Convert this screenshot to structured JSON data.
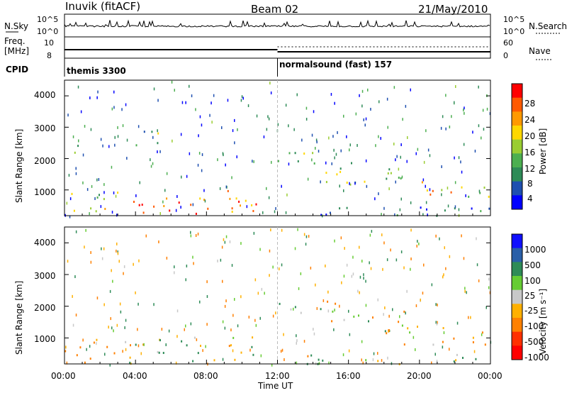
{
  "header": {
    "station": "Inuvik (fitACF)",
    "beam": "Beam 02",
    "date": "21/May/2010"
  },
  "panels": {
    "nsky": {
      "label": "N.Sky",
      "right_label": "N.Search",
      "ticks_left": [
        "10^5",
        "10^0"
      ],
      "ticks_right": [
        "10^5",
        "10^0"
      ]
    },
    "freq": {
      "label_line1": "Freq.",
      "label_line2": "[MHz]",
      "right_label": "Nave",
      "ticks_left": [
        "10",
        "8"
      ],
      "ticks_right": [
        "60",
        "0"
      ]
    },
    "cpid": {
      "label": "CPID",
      "segments": [
        "themis 3300",
        "normalsound (fast) 157"
      ]
    },
    "power": {
      "ylabel": "Slant Range [km]",
      "colorbar_label": "Power [dB]",
      "colorbar_ticks": [
        "28",
        "24",
        "20",
        "16",
        "12",
        "8",
        "4"
      ]
    },
    "velocity": {
      "ylabel": "Slant Range [km]",
      "colorbar_label": "Velocity  [m s⁻¹]",
      "colorbar_ticks": [
        "1000",
        "500",
        "100",
        "25",
        "-25",
        "-100",
        "-500",
        "-1000"
      ]
    }
  },
  "xaxis": {
    "label": "Time UT",
    "ticks": [
      "00:00",
      "04:00",
      "08:00",
      "12:00",
      "16:00",
      "20:00",
      "00:00"
    ]
  },
  "colors": {
    "power_scale": [
      "#0000ff",
      "#1e4fb0",
      "#2e8b57",
      "#4caf50",
      "#9acd32",
      "#ffd700",
      "#ff9900",
      "#ff5a00",
      "#ff0000"
    ],
    "velocity_scale": [
      "#1010ff",
      "#2a5fa8",
      "#2e8b57",
      "#66cc33",
      "#c8c8c8",
      "#ffb000",
      "#ff8000",
      "#ff3000",
      "#ff0000"
    ]
  },
  "chart_data": [
    {
      "type": "heatmap",
      "title": "Power",
      "ylabel": "Slant Range [km]",
      "xlabel": "Time UT",
      "ylim": [
        180,
        4500
      ],
      "xlim_hours": [
        0,
        24
      ],
      "yticks": [
        1000,
        2000,
        3000,
        4000
      ],
      "colorbar_range_dB": [
        0,
        30
      ],
      "echo_bands": [
        {
          "t_start": 0,
          "t_end": 2.2,
          "r_low": 200,
          "r_high": 1000,
          "value": 14
        },
        {
          "t_start": 0.3,
          "t_end": 1.2,
          "r_low": 2000,
          "r_high": 2600,
          "value": 10
        },
        {
          "t_start": 2.2,
          "t_end": 11.0,
          "r_low": 200,
          "r_high": 1000,
          "value": 24
        },
        {
          "t_start": 4.0,
          "t_end": 5.5,
          "r_low": 2200,
          "r_high": 3000,
          "value": 10
        },
        {
          "t_start": 12.0,
          "t_end": 15.0,
          "r_low": 1800,
          "r_high": 2400,
          "value": 12
        },
        {
          "t_start": 14.0,
          "t_end": 20.0,
          "r_low": 1200,
          "r_high": 1900,
          "value": 12
        },
        {
          "t_start": 18.5,
          "t_end": 24.0,
          "r_low": 800,
          "r_high": 1300,
          "value": 18
        },
        {
          "t_start": 12.0,
          "t_end": 24.0,
          "r_low": 200,
          "r_high": 500,
          "value": 6
        }
      ]
    },
    {
      "type": "heatmap",
      "title": "Velocity",
      "ylabel": "Slant Range [km]",
      "xlabel": "Time UT",
      "ylim": [
        180,
        4500
      ],
      "xlim_hours": [
        0,
        24
      ],
      "yticks": [
        1000,
        2000,
        3000,
        4000
      ],
      "colorbar_range_ms": [
        -1000,
        1000
      ],
      "echo_bands": [
        {
          "t_start": 0,
          "t_end": 3.0,
          "r_low": 200,
          "r_high": 1000,
          "value": -200
        },
        {
          "t_start": 3.0,
          "t_end": 11.0,
          "r_low": 600,
          "r_high": 1100,
          "value": 0
        },
        {
          "t_start": 3.0,
          "t_end": 11.0,
          "r_low": 200,
          "r_high": 600,
          "value": 150
        },
        {
          "t_start": 12.0,
          "t_end": 16.0,
          "r_low": 1800,
          "r_high": 2300,
          "value": 0
        },
        {
          "t_start": 15.0,
          "t_end": 20.0,
          "r_low": 1200,
          "r_high": 1900,
          "value": 0
        },
        {
          "t_start": 18.0,
          "t_end": 24.0,
          "r_low": 800,
          "r_high": 1400,
          "value": -200
        },
        {
          "t_start": 12.0,
          "t_end": 24.0,
          "r_low": 200,
          "r_high": 500,
          "value": 120
        }
      ]
    }
  ]
}
